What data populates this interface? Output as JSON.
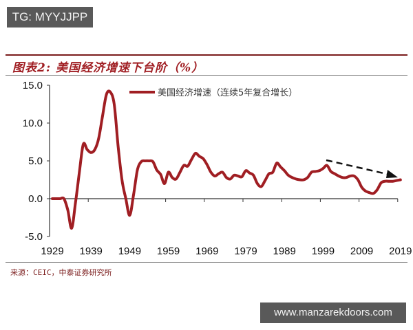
{
  "watermarks": {
    "top": "TG: MYYJJPP",
    "bottom": "www.manzarekdoors.com"
  },
  "figure": {
    "title": "图表2:  美国经济增速下台阶（%）",
    "source": "来源：CEIC，中泰证券研究所"
  },
  "colors": {
    "line": "#a01e23",
    "title": "#a01e23",
    "arrow": "#111111",
    "axis": "#333333"
  },
  "chart_data": {
    "type": "line",
    "title": "图表2:  美国经济增速下台阶（%）",
    "xlabel": "",
    "ylabel": "",
    "xlim": [
      1929,
      2019
    ],
    "ylim": [
      -5.0,
      15.0
    ],
    "yticks": [
      "15.0",
      "10.0",
      "5.0",
      "0.0",
      "-5.0"
    ],
    "ytick_values": [
      15,
      10,
      5,
      0,
      -5
    ],
    "xticks": [
      "1929",
      "1939",
      "1949",
      "1959",
      "1969",
      "1979",
      "1989",
      "1999",
      "2009",
      "2019"
    ],
    "grid": false,
    "legend_position": "top-center",
    "annotations": [
      "dashed arrow pointing downward from ~2000 to 2019 indicating declining trend"
    ],
    "series": [
      {
        "name": "美国经济增速（连续5年复合增长）",
        "x": [
          1929,
          1930,
          1931,
          1932,
          1933,
          1934,
          1935,
          1936,
          1937,
          1938,
          1939,
          1940,
          1941,
          1942,
          1943,
          1944,
          1945,
          1946,
          1947,
          1948,
          1949,
          1950,
          1951,
          1952,
          1953,
          1954,
          1955,
          1956,
          1957,
          1958,
          1959,
          1960,
          1961,
          1962,
          1963,
          1964,
          1965,
          1966,
          1967,
          1968,
          1969,
          1970,
          1971,
          1972,
          1973,
          1974,
          1975,
          1976,
          1977,
          1978,
          1979,
          1980,
          1981,
          1982,
          1983,
          1984,
          1985,
          1986,
          1987,
          1988,
          1989,
          1990,
          1991,
          1992,
          1993,
          1994,
          1995,
          1996,
          1997,
          1998,
          1999,
          2000,
          2001,
          2002,
          2003,
          2004,
          2005,
          2006,
          2007,
          2008,
          2009,
          2010,
          2011,
          2012,
          2013,
          2014,
          2015,
          2016,
          2017,
          2018,
          2019
        ],
        "values": [
          0.0,
          0.0,
          0.0,
          0.0,
          -1.5,
          -3.9,
          -0.5,
          3.5,
          7.2,
          6.5,
          6.1,
          6.5,
          8.0,
          11.0,
          13.8,
          14.1,
          12.5,
          7.0,
          2.5,
          0.0,
          -2.2,
          0.5,
          3.8,
          4.9,
          5.0,
          5.0,
          4.9,
          3.8,
          3.2,
          2.0,
          3.5,
          2.8,
          2.6,
          3.5,
          4.4,
          4.3,
          5.2,
          6.0,
          5.6,
          5.3,
          4.5,
          3.5,
          3.0,
          3.3,
          3.5,
          2.8,
          2.6,
          3.1,
          3.0,
          2.9,
          3.7,
          3.4,
          3.1,
          2.0,
          1.6,
          2.4,
          3.3,
          3.5,
          4.7,
          4.2,
          3.7,
          3.1,
          2.8,
          2.6,
          2.5,
          2.5,
          2.8,
          3.5,
          3.6,
          3.7,
          4.0,
          4.4,
          3.6,
          3.3,
          3.0,
          2.8,
          2.8,
          3.0,
          3.0,
          2.5,
          1.5,
          1.0,
          0.8,
          0.7,
          1.2,
          2.1,
          2.3,
          2.3,
          2.3,
          2.4,
          2.5
        ]
      }
    ]
  }
}
